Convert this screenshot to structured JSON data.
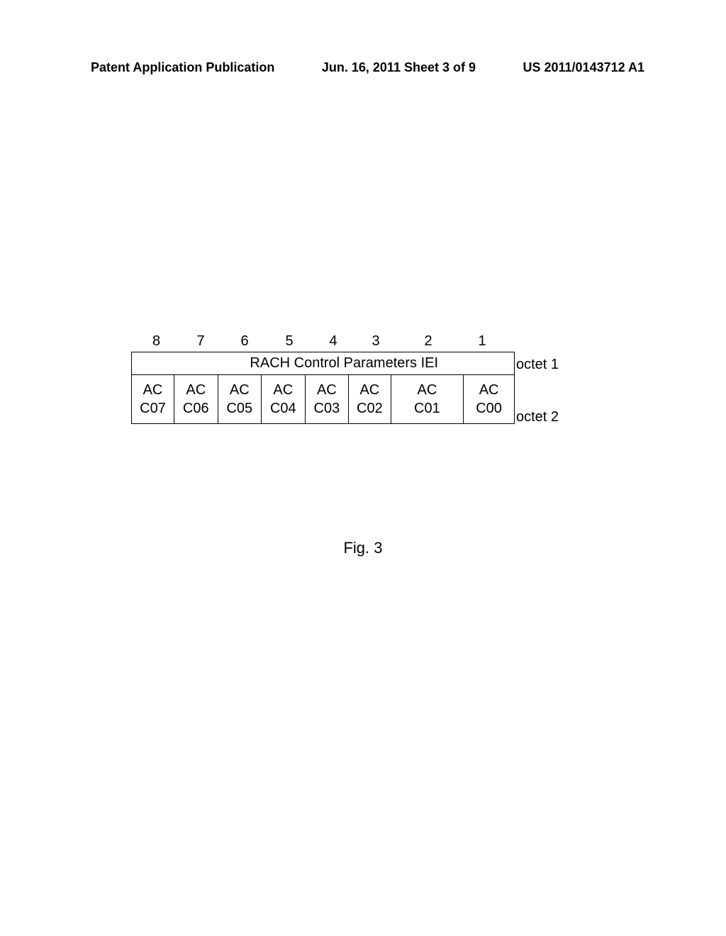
{
  "header": {
    "left": "Patent Application Publication",
    "center": "Jun. 16, 2011  Sheet 3 of 9",
    "right": "US 2011/0143712 A1"
  },
  "diagram": {
    "bit_numbers": [
      "8",
      "7",
      "6",
      "5",
      "4",
      "3",
      "2",
      "1"
    ],
    "row1_span_text": "RACH Control Parameters IEI",
    "row2_cells": [
      "AC\nC07",
      "AC\nC06",
      "AC\nC05",
      "AC\nC04",
      "AC\nC03",
      "AC\nC02",
      "AC\nC01",
      "AC\nC00"
    ],
    "octet_labels": [
      "octet 1",
      "octet 2"
    ],
    "border_color": "#000000",
    "text_color": "#000000",
    "background_color": "#ffffff",
    "font_size": 20
  },
  "figure_label": "Fig. 3"
}
